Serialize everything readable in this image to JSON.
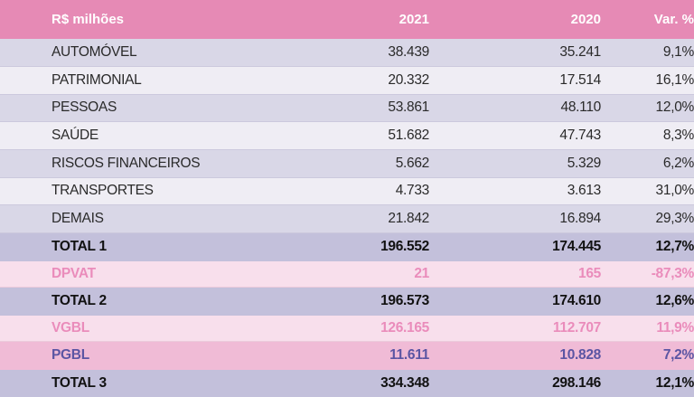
{
  "table": {
    "columns": [
      "R$ milhões",
      "2021",
      "2020",
      "Var. %"
    ],
    "rows": [
      {
        "label": "AUTOMÓVEL",
        "y2021": "38.439",
        "y2020": "35.241",
        "var": "9,1%",
        "style": "dark"
      },
      {
        "label": "PATRIMONIAL",
        "y2021": "20.332",
        "y2020": "17.514",
        "var": "16,1%",
        "style": "light"
      },
      {
        "label": "PESSOAS",
        "y2021": "53.861",
        "y2020": "48.110",
        "var": "12,0%",
        "style": "dark"
      },
      {
        "label": "SAÚDE",
        "y2021": "51.682",
        "y2020": "47.743",
        "var": "8,3%",
        "style": "light"
      },
      {
        "label": "RISCOS FINANCEIROS",
        "y2021": "5.662",
        "y2020": "5.329",
        "var": "6,2%",
        "style": "dark"
      },
      {
        "label": "TRANSPORTES",
        "y2021": "4.733",
        "y2020": "3.613",
        "var": "31,0%",
        "style": "light"
      },
      {
        "label": "DEMAIS",
        "y2021": "21.842",
        "y2020": "16.894",
        "var": "29,3%",
        "style": "dark"
      },
      {
        "label": "TOTAL 1",
        "y2021": "196.552",
        "y2020": "174.445",
        "var": "12,7%",
        "style": "total"
      },
      {
        "label": "DPVAT",
        "y2021": "21",
        "y2020": "165",
        "var": "-87,3%",
        "style": "pinklight"
      },
      {
        "label": "TOTAL 2",
        "y2021": "196.573",
        "y2020": "174.610",
        "var": "12,6%",
        "style": "total"
      },
      {
        "label": "VGBL",
        "y2021": "126.165",
        "y2020": "112.707",
        "var": "11,9%",
        "style": "pinklight"
      },
      {
        "label": "PGBL",
        "y2021": "11.611",
        "y2020": "10.828",
        "var": "7,2%",
        "style": "pink"
      },
      {
        "label": "TOTAL 3",
        "y2021": "334.348",
        "y2020": "298.146",
        "var": "12,1%",
        "style": "total"
      }
    ]
  },
  "colors": {
    "header_bg": "#e68ab5",
    "total_bg": "#c3c0db",
    "pink_text": "#ea8cbb",
    "pgbl_text": "#5b55a3"
  }
}
